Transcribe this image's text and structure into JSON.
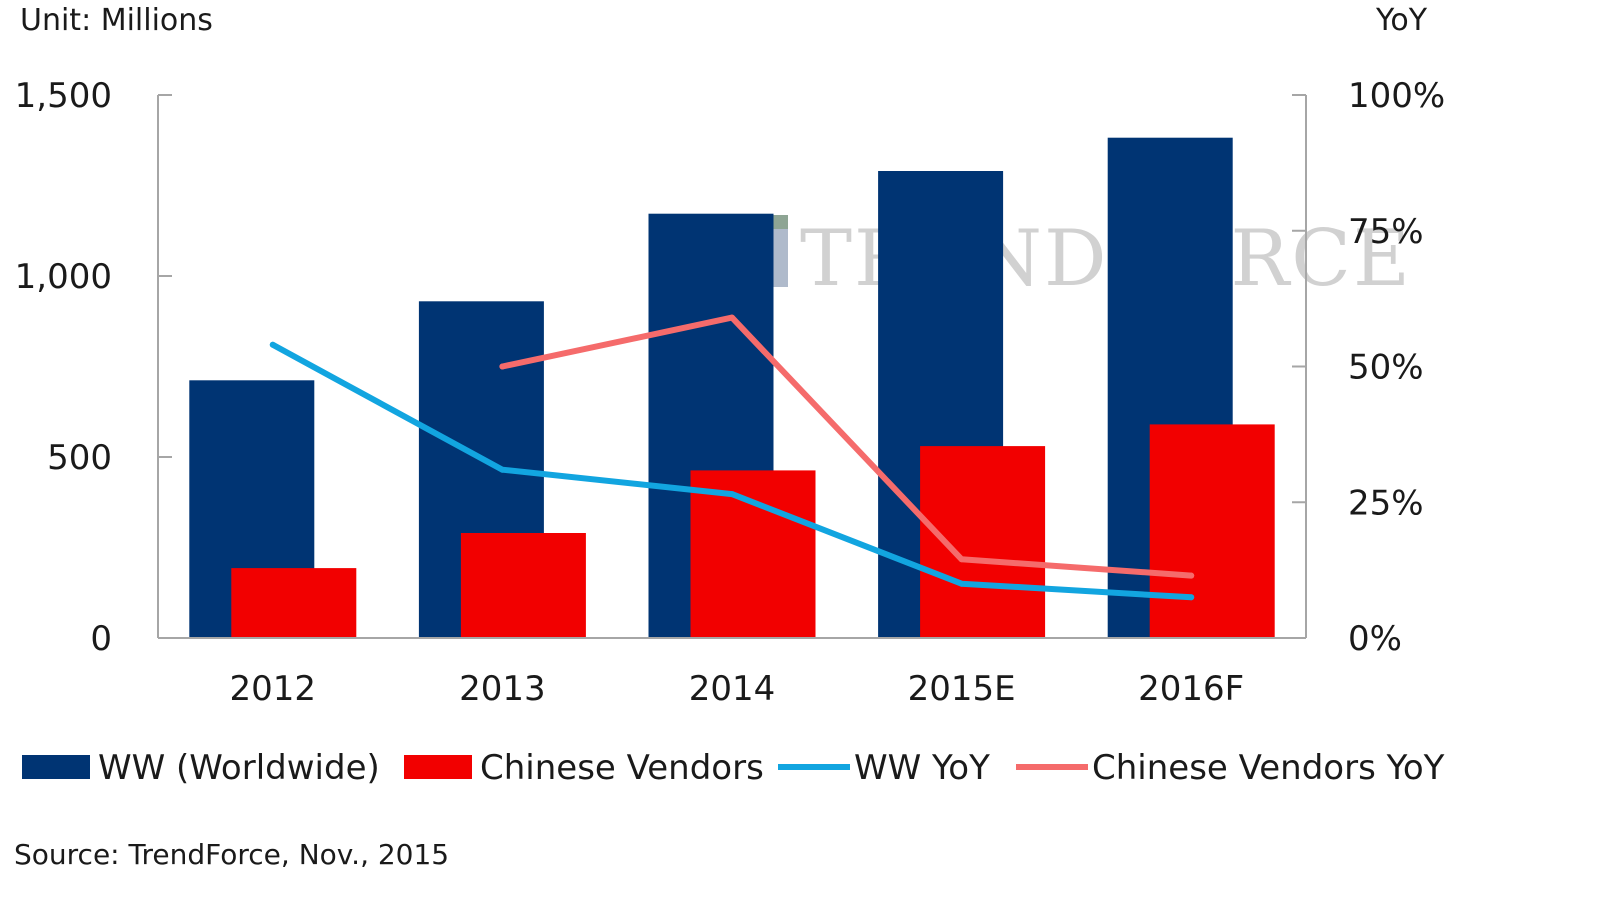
{
  "chart_data": {
    "type": "bar",
    "categories": [
      "2012",
      "2013",
      "2014",
      "2015E",
      "2016F"
    ],
    "series": [
      {
        "name": "WW (Worldwide)",
        "kind": "bar",
        "axis": "left",
        "color": "#003473",
        "values": [
          712,
          930,
          1172,
          1290,
          1382
        ]
      },
      {
        "name": "Chinese Vendors",
        "kind": "bar",
        "axis": "left",
        "color": "#f20000",
        "values": [
          193,
          290,
          463,
          530,
          590
        ]
      },
      {
        "name": "WW YoY",
        "kind": "line",
        "axis": "right",
        "color": "#12a5e0",
        "values": [
          54,
          31,
          26.5,
          10,
          7.5
        ]
      },
      {
        "name": "Chinese Vendors YoY",
        "kind": "line",
        "axis": "right",
        "color": "#f56b6b",
        "values": [
          null,
          50,
          59,
          14.5,
          11.5
        ]
      }
    ],
    "y_left": {
      "label": "Unit: Millions",
      "min": 0,
      "max": 1500,
      "ticks": [
        0,
        500,
        1000,
        1500
      ],
      "tick_labels": [
        "0",
        "500",
        "1,000",
        "1,500"
      ]
    },
    "y_right": {
      "label": "YoY",
      "min": 0,
      "max": 100,
      "ticks": [
        0,
        25,
        50,
        75,
        100
      ],
      "tick_labels": [
        "0%",
        "25%",
        "50%",
        "75%",
        "100%"
      ]
    },
    "grid": false,
    "legend_position": "bottom",
    "source": "Source: TrendForce, Nov., 2015",
    "watermark": "TRENDFORCE"
  }
}
